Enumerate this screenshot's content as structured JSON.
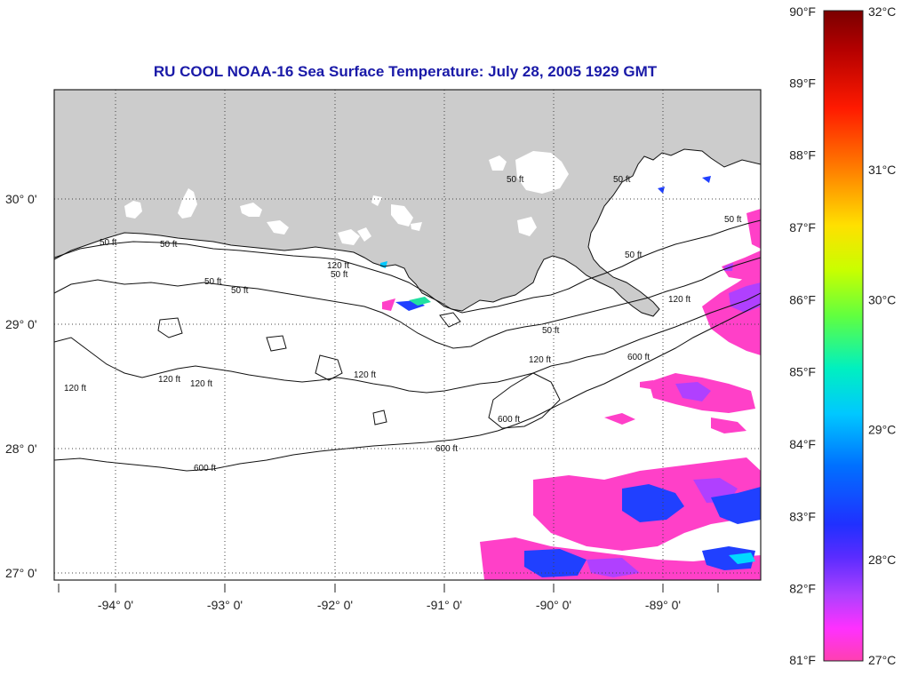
{
  "title": "RU COOL  NOAA-16  Sea Surface Temperature:  July 28, 2005 1929 GMT",
  "map": {
    "land_color": "#cccccc",
    "ocean_color": "#ffffff",
    "lon_range": [
      -94.5,
      -88.05
    ],
    "lat_range": [
      26.95,
      30.85
    ],
    "lon_labels": [
      "-94° 0'",
      "-93° 0'",
      "-92° 0'",
      "-91° 0'",
      "-90° 0'",
      "-89° 0'"
    ],
    "lat_labels": [
      "30° 0'",
      "29° 0'",
      "28° 0'",
      "27° 0'"
    ],
    "contour_labels": [
      "50 ft",
      "120 ft",
      "600 ft"
    ]
  },
  "colorbar": {
    "fahrenheit": [
      "90°F",
      "89°F",
      "88°F",
      "87°F",
      "86°F",
      "85°F",
      "84°F",
      "83°F",
      "82°F",
      "81°F"
    ],
    "celsius": [
      "32°C",
      "31°C",
      "30°C",
      "29°C",
      "28°C",
      "27°C"
    ],
    "range_f": [
      81,
      90
    ]
  }
}
